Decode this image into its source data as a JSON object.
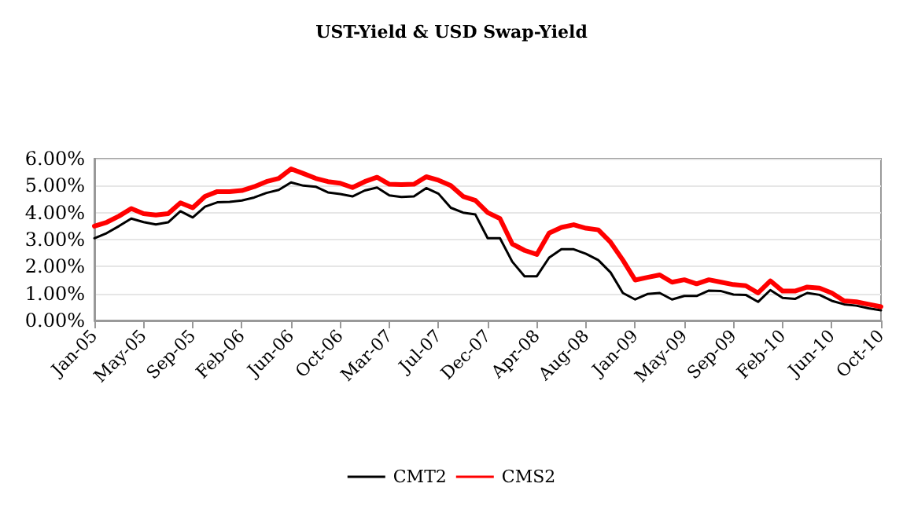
{
  "chart_data": {
    "type": "line",
    "title": "UST-Yield & USD Swap-Yield",
    "categories": [
      "Jan-05",
      null,
      null,
      null,
      "May-05",
      null,
      null,
      null,
      "Sep-05",
      null,
      null,
      null,
      "Feb-06",
      null,
      null,
      null,
      "Jun-06",
      null,
      null,
      null,
      "Oct-06",
      null,
      null,
      null,
      "Mar-07",
      null,
      null,
      null,
      "Jul-07",
      null,
      null,
      null,
      "Dec-07",
      null,
      null,
      null,
      "Apr-08",
      null,
      null,
      null,
      "Aug-08",
      null,
      null,
      null,
      "Jan-09",
      null,
      null,
      null,
      "May-09",
      null,
      null,
      null,
      "Sep-09",
      null,
      null,
      null,
      "Feb-10",
      null,
      null,
      null,
      "Jun-10",
      null,
      null,
      null,
      "Oct-10"
    ],
    "series": [
      {
        "name": "CMT2",
        "color": "#000000",
        "values": [
          3.05,
          3.24,
          3.5,
          3.78,
          3.65,
          3.56,
          3.64,
          4.05,
          3.82,
          4.22,
          4.38,
          4.4,
          4.45,
          4.56,
          4.73,
          4.84,
          5.12,
          5.0,
          4.96,
          4.75,
          4.69,
          4.6,
          4.82,
          4.93,
          4.64,
          4.58,
          4.6,
          4.91,
          4.7,
          4.18,
          4.0,
          3.93,
          3.05,
          3.05,
          2.18,
          1.64,
          1.64,
          2.33,
          2.64,
          2.64,
          2.47,
          2.24,
          1.78,
          1.02,
          0.78,
          0.98,
          1.02,
          0.78,
          0.91,
          0.91,
          1.11,
          1.09,
          0.96,
          0.95,
          0.69,
          1.13,
          0.84,
          0.8,
          1.02,
          0.95,
          0.73,
          0.6,
          0.55,
          0.45,
          0.38
        ]
      },
      {
        "name": "CMS2",
        "color": "#ff0000",
        "values": [
          3.5,
          3.64,
          3.87,
          4.15,
          3.96,
          3.91,
          3.96,
          4.36,
          4.18,
          4.6,
          4.78,
          4.78,
          4.82,
          4.96,
          5.15,
          5.27,
          5.62,
          5.45,
          5.27,
          5.15,
          5.09,
          4.93,
          5.15,
          5.31,
          5.05,
          5.04,
          5.05,
          5.33,
          5.2,
          5.0,
          4.6,
          4.45,
          4.0,
          3.78,
          2.84,
          2.6,
          2.45,
          3.24,
          3.45,
          3.55,
          3.42,
          3.36,
          2.9,
          2.24,
          1.5,
          1.6,
          1.69,
          1.42,
          1.51,
          1.36,
          1.51,
          1.42,
          1.33,
          1.29,
          1.02,
          1.47,
          1.09,
          1.09,
          1.24,
          1.2,
          1.02,
          0.73,
          0.69,
          0.6,
          0.51
        ]
      }
    ],
    "ylim": [
      0,
      6
    ],
    "yticks": [
      {
        "value": 0,
        "label": "0.00%"
      },
      {
        "value": 1,
        "label": "1.00%"
      },
      {
        "value": 2,
        "label": "2.00%"
      },
      {
        "value": 3,
        "label": "3.00%"
      },
      {
        "value": 4,
        "label": "4.00%"
      },
      {
        "value": 5,
        "label": "5.00%"
      },
      {
        "value": 6,
        "label": "6.00%"
      }
    ],
    "grid": "y",
    "legend": "bottom",
    "marker": "none",
    "line_style": "solid"
  }
}
